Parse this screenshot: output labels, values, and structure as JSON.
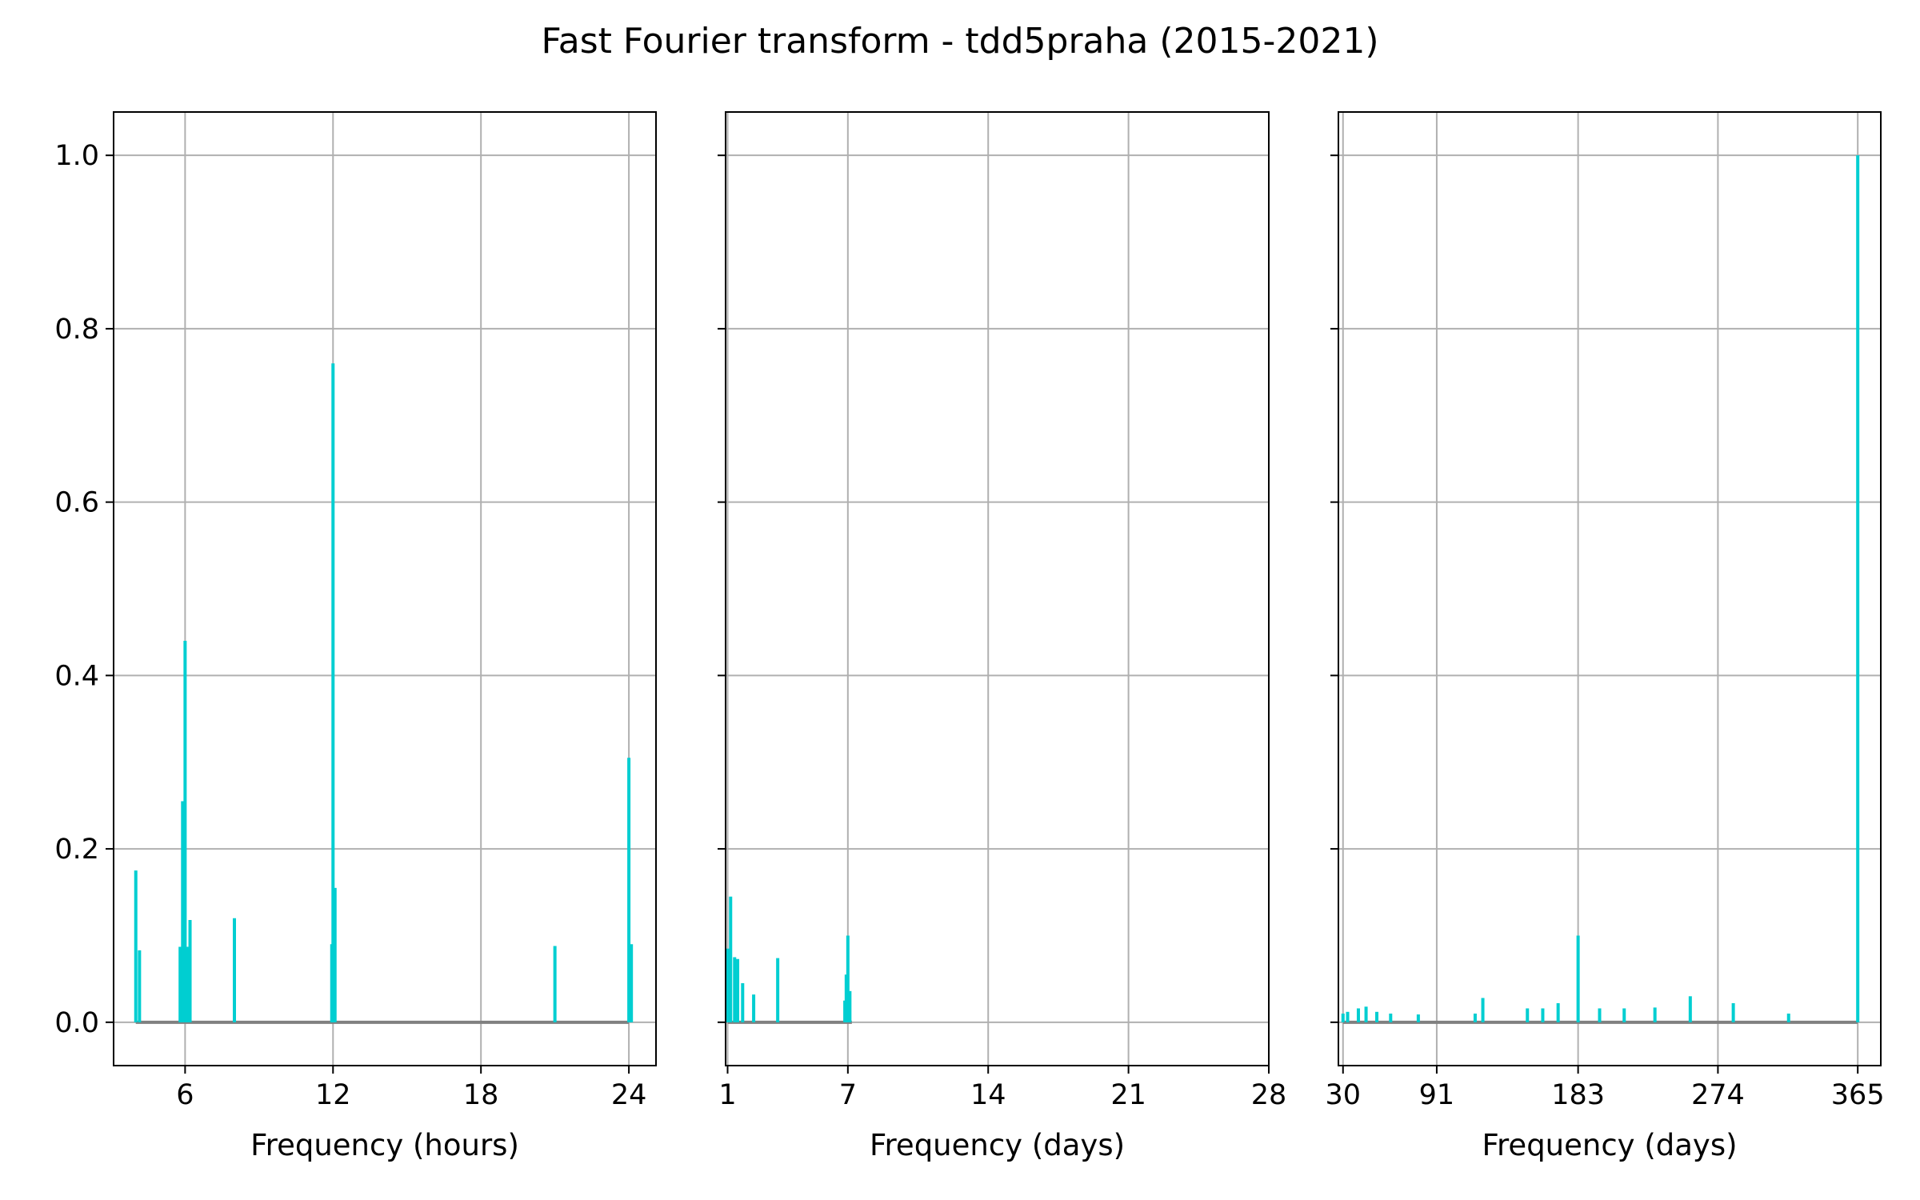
{
  "figure": {
    "title": "Fast Fourier transform - tdd5praha (2015-2021)"
  },
  "colors": {
    "stem": "#00CED1",
    "baseline": "#808080",
    "grid": "#b0b0b0",
    "axes": "#000000"
  },
  "chart_data": [
    {
      "type": "bar",
      "xlabel": "Frequency (hours)",
      "ylabel": "",
      "xlim": [
        3.1,
        25.1
      ],
      "ylim": [
        -0.05,
        1.05
      ],
      "xticks": [
        6,
        12,
        18,
        24
      ],
      "xtick_labels": [
        "6",
        "12",
        "18",
        "24"
      ],
      "yticks": [
        0.0,
        0.2,
        0.4,
        0.6,
        0.8,
        1.0
      ],
      "ytick_labels": [
        "0.0",
        "0.2",
        "0.4",
        "0.6",
        "0.8",
        "1.0"
      ],
      "show_yticklabels": true,
      "grid": true,
      "baseline": [
        4.0,
        24.0
      ],
      "series": [
        {
          "x": [
            4.0,
            4.15,
            5.8,
            5.9,
            6.0,
            6.1,
            6.2,
            8.0,
            11.95,
            12.0,
            12.08,
            21.0,
            24.0,
            24.1
          ],
          "values": [
            0.175,
            0.083,
            0.087,
            0.255,
            0.44,
            0.087,
            0.118,
            0.12,
            0.09,
            0.76,
            0.155,
            0.088,
            0.305,
            0.09
          ]
        }
      ]
    },
    {
      "type": "bar",
      "xlabel": "Frequency (days)",
      "ylabel": "",
      "xlim": [
        0.9,
        28
      ],
      "ylim": [
        -0.05,
        1.05
      ],
      "xticks": [
        1,
        7,
        14,
        21,
        28
      ],
      "xtick_labels": [
        "1",
        "7",
        "14",
        "21",
        "28"
      ],
      "show_yticklabels": false,
      "grid": true,
      "baseline": [
        1.0,
        7.2
      ],
      "series": [
        {
          "x": [
            1.0,
            1.15,
            1.35,
            1.5,
            1.75,
            2.3,
            3.5,
            6.85,
            6.92,
            7.0,
            7.1
          ],
          "values": [
            0.085,
            0.145,
            0.075,
            0.073,
            0.045,
            0.032,
            0.074,
            0.025,
            0.055,
            0.1,
            0.036
          ]
        }
      ]
    },
    {
      "type": "bar",
      "xlabel": "Frequency (days)",
      "ylabel": "",
      "xlim": [
        27,
        380
      ],
      "ylim": [
        -0.05,
        1.05
      ],
      "xticks": [
        30,
        91,
        183,
        274,
        365
      ],
      "xtick_labels": [
        "30",
        "91",
        "183",
        "274",
        "365"
      ],
      "show_yticklabels": false,
      "grid": true,
      "baseline": [
        30,
        365
      ],
      "series": [
        {
          "x": [
            30,
            33,
            40,
            45,
            52,
            61,
            79,
            116,
            121,
            150,
            160,
            170,
            183,
            197,
            213,
            233,
            256,
            284,
            320,
            365
          ],
          "values": [
            0.01,
            0.012,
            0.016,
            0.018,
            0.012,
            0.01,
            0.009,
            0.01,
            0.028,
            0.016,
            0.016,
            0.022,
            0.1,
            0.016,
            0.016,
            0.017,
            0.03,
            0.022,
            0.01,
            1.0
          ]
        }
      ]
    }
  ]
}
